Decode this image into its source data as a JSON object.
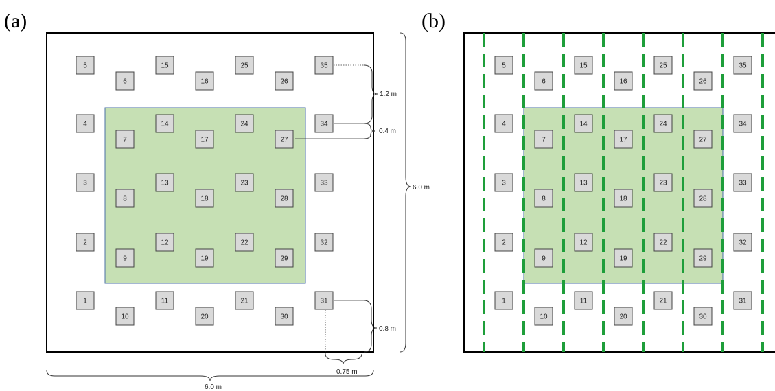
{
  "panels": {
    "a": {
      "label": "(a)"
    },
    "b": {
      "label": "(b)"
    }
  },
  "plants": {
    "ids": [
      "1",
      "2",
      "3",
      "4",
      "5",
      "6",
      "7",
      "8",
      "9",
      "10",
      "11",
      "12",
      "13",
      "14",
      "15",
      "16",
      "17",
      "18",
      "19",
      "20",
      "21",
      "22",
      "23",
      "24",
      "25",
      "26",
      "27",
      "28",
      "29",
      "30",
      "31",
      "32",
      "33",
      "34",
      "35"
    ]
  },
  "dimensions": {
    "spacing_row": "1.2 m",
    "offset_row": "0.4 m",
    "plot_height": "6.0 m",
    "edge_gap": "0.8 m",
    "edge_offset": "0.75 m",
    "plot_width": "6.0 m"
  },
  "colors": {
    "inner_zone": "#c6e0b4",
    "dashed_lines": "#1e9e3a"
  }
}
